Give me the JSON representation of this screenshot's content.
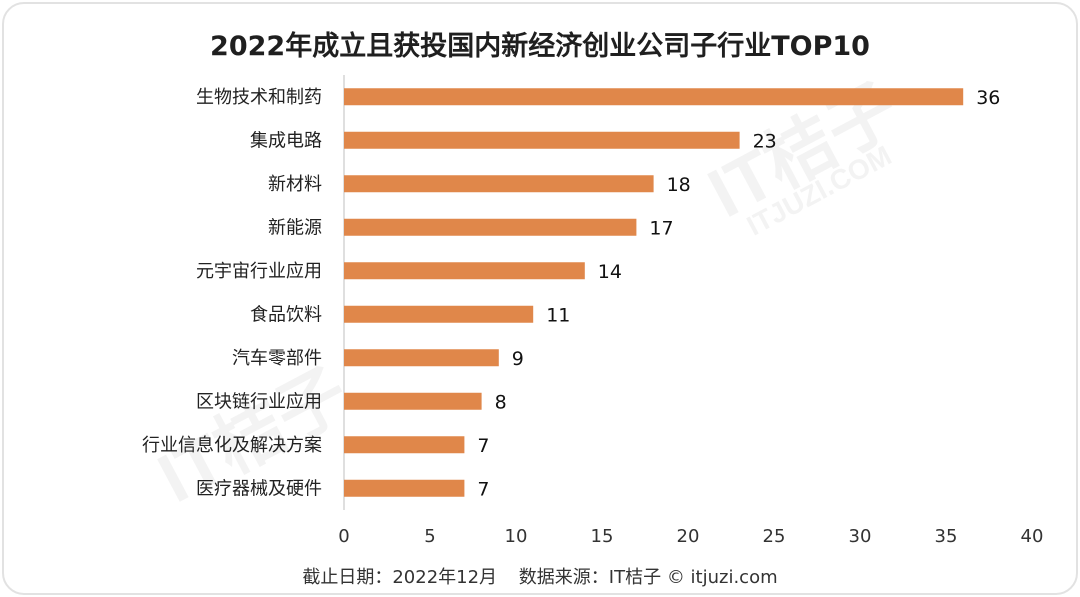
{
  "chart_data": {
    "type": "bar",
    "orientation": "horizontal",
    "title": "2022年成立且获投国内新经济创业公司子行业TOP10",
    "categories": [
      "生物技术和制药",
      "集成电路",
      "新材料",
      "新能源",
      "元宇宙行业应用",
      "食品饮料",
      "汽车零部件",
      "区块链行业应用",
      "行业信息化及解决方案",
      "医疗器械及硬件"
    ],
    "values": [
      36,
      23,
      18,
      17,
      14,
      11,
      9,
      8,
      7,
      7
    ],
    "xlim": [
      0,
      40
    ],
    "xticks": [
      0,
      5,
      10,
      15,
      20,
      25,
      30,
      35,
      40
    ],
    "xlabel": "",
    "ylabel": "",
    "grid": false,
    "bar_color": "#e0874a"
  },
  "footer": {
    "date": "截止日期：2022年12月",
    "source": "数据来源：IT桔子 © itjuzi.com"
  },
  "watermark": {
    "brand": "IT桔子",
    "url": "ITJUZI.COM"
  }
}
